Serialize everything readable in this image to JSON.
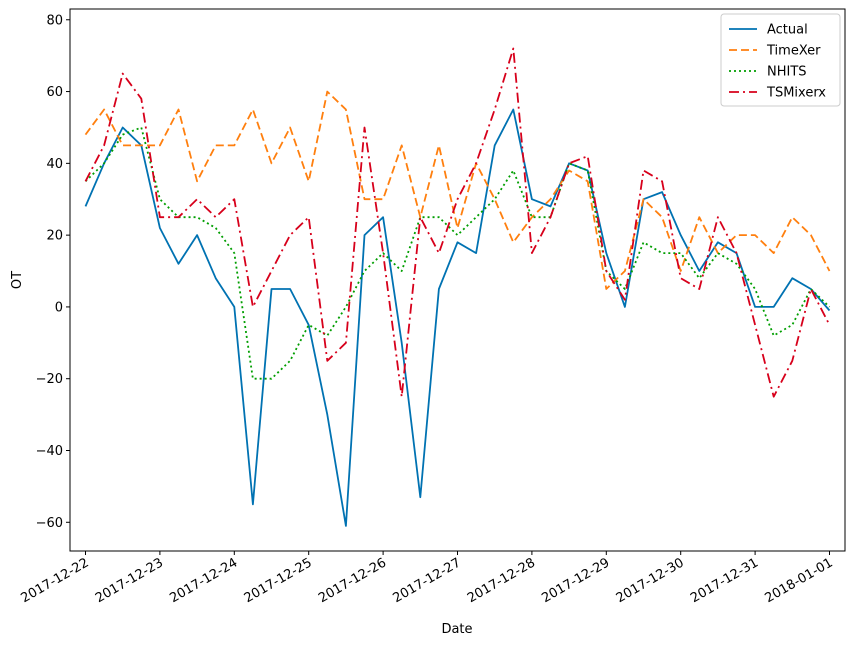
{
  "chart_data": {
    "type": "line",
    "xlabel": "Date",
    "ylabel": "OT",
    "xlim": [
      "2017-12-21T19:00",
      "2018-01-01T05:00"
    ],
    "ylim": [
      -68,
      83
    ],
    "x_ticks": [
      "2017-12-22",
      "2017-12-23",
      "2017-12-24",
      "2017-12-25",
      "2017-12-26",
      "2017-12-27",
      "2017-12-28",
      "2017-12-29",
      "2017-12-30",
      "2017-12-31",
      "2018-01-01"
    ],
    "y_ticks": [
      -60,
      -40,
      -20,
      0,
      20,
      40,
      60,
      80
    ],
    "y_tick_labels": [
      "−60",
      "−40",
      "−20",
      "0",
      "20",
      "40",
      "60",
      "80"
    ],
    "grid": false,
    "legend_position": "top-right",
    "x_dates": [
      "2017-12-22T00:00",
      "2017-12-22T06:00",
      "2017-12-22T12:00",
      "2017-12-22T18:00",
      "2017-12-23T00:00",
      "2017-12-23T06:00",
      "2017-12-23T12:00",
      "2017-12-23T18:00",
      "2017-12-24T00:00",
      "2017-12-24T06:00",
      "2017-12-24T12:00",
      "2017-12-24T18:00",
      "2017-12-25T00:00",
      "2017-12-25T06:00",
      "2017-12-25T12:00",
      "2017-12-25T18:00",
      "2017-12-26T00:00",
      "2017-12-26T06:00",
      "2017-12-26T12:00",
      "2017-12-26T18:00",
      "2017-12-27T00:00",
      "2017-12-27T06:00",
      "2017-12-27T12:00",
      "2017-12-27T18:00",
      "2017-12-28T00:00",
      "2017-12-28T06:00",
      "2017-12-28T12:00",
      "2017-12-28T18:00",
      "2017-12-29T00:00",
      "2017-12-29T06:00",
      "2017-12-29T12:00",
      "2017-12-29T18:00",
      "2017-12-30T00:00",
      "2017-12-30T06:00",
      "2017-12-30T12:00",
      "2017-12-30T18:00",
      "2017-12-31T00:00",
      "2017-12-31T06:00",
      "2017-12-31T12:00",
      "2017-12-31T18:00",
      "2018-01-01T00:00"
    ],
    "series": [
      {
        "name": "Actual",
        "color": "#0072b2",
        "dash": "solid",
        "values": [
          28,
          40,
          50,
          45,
          22,
          12,
          20,
          8,
          0,
          -55,
          5,
          5,
          -5,
          -30,
          -61,
          20,
          25,
          -10,
          -53,
          5,
          18,
          15,
          45,
          55,
          30,
          28,
          40,
          38,
          15,
          0,
          30,
          32,
          20,
          10,
          18,
          15,
          0,
          0,
          8,
          5,
          -1
        ]
      },
      {
        "name": "TimeXer",
        "color": "#ff7f0e",
        "dash": "8,4",
        "values": [
          48,
          55,
          45,
          45,
          45,
          55,
          35,
          45,
          45,
          55,
          40,
          50,
          35,
          60,
          55,
          30,
          30,
          45,
          25,
          45,
          22,
          40,
          30,
          18,
          25,
          30,
          38,
          35,
          5,
          10,
          30,
          25,
          10,
          25,
          15,
          20,
          20,
          15,
          25,
          20,
          10
        ]
      },
      {
        "name": "NHITS",
        "color": "#009e00",
        "dash": "2,3",
        "values": [
          35,
          40,
          48,
          50,
          30,
          25,
          25,
          22,
          15,
          -20,
          -20,
          -15,
          -5,
          -8,
          0,
          10,
          15,
          10,
          25,
          25,
          20,
          25,
          30,
          38,
          25,
          25,
          40,
          38,
          10,
          5,
          18,
          15,
          15,
          8,
          15,
          12,
          5,
          -8,
          -5,
          5,
          0
        ]
      },
      {
        "name": "TSMixerx",
        "color": "#d7001b",
        "dash": "10,4,2,4",
        "values": [
          35,
          45,
          65,
          58,
          25,
          25,
          30,
          25,
          30,
          0,
          10,
          20,
          25,
          -15,
          -10,
          50,
          15,
          -25,
          25,
          15,
          30,
          40,
          55,
          72,
          15,
          25,
          40,
          42,
          10,
          2,
          38,
          35,
          8,
          5,
          25,
          15,
          -5,
          -25,
          -15,
          5,
          -5
        ]
      }
    ]
  }
}
